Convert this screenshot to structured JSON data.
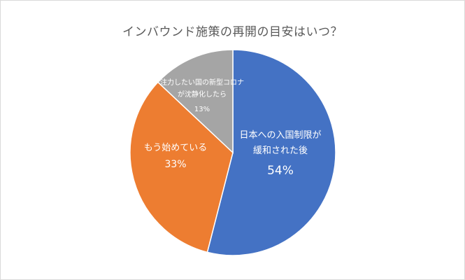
{
  "chart_data": {
    "type": "pie",
    "title": "インバウンド施策の再開の目安はいつ？",
    "slices": [
      {
        "label_lines": [
          "日本への入国制限が",
          "緩和された後"
        ],
        "value": 54,
        "value_label": "54%",
        "color": "#4472C4"
      },
      {
        "label_lines": [
          "もう始めている"
        ],
        "value": 33,
        "value_label": "33%",
        "color": "#ED7D31"
      },
      {
        "label_lines": [
          "注力したい国の新型コロナ",
          "が沈静化したら"
        ],
        "value": 13,
        "value_label": "13%",
        "color": "#A5A5A5"
      }
    ]
  }
}
